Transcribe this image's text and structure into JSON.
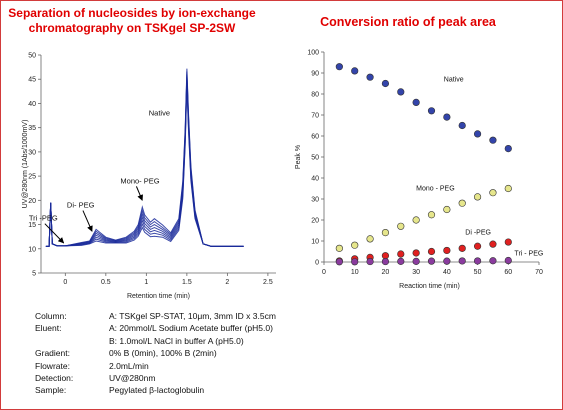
{
  "left_title": [
    "Separation of nucleosides by ion-exchange",
    "chromatography on TSKgel SP-2SW"
  ],
  "right_title": "Conversion ratio of peak area",
  "chart_data": [
    {
      "type": "line",
      "xlabel": "Retention time (min)",
      "ylabel": "UV@280nm (1Abs/1000mV)",
      "xlim": [
        -0.3,
        2.6
      ],
      "ylim": [
        5,
        50
      ],
      "x_ticks": [
        0,
        0.5,
        1,
        1.5,
        2,
        2.5
      ],
      "y_ticks": [
        5,
        10,
        15,
        20,
        25,
        30,
        35,
        40,
        45,
        50
      ],
      "x_tick_labels": [
        "0",
        "0.5",
        "1",
        "1.5",
        "2",
        "2.5"
      ],
      "y_tick_labels": [
        "5",
        "10",
        "15",
        "20",
        "25",
        "30",
        "35",
        "40",
        "45",
        "50"
      ],
      "grid": false,
      "line_color": "#1a2a9a",
      "annotations": [
        {
          "text": "Native",
          "x": 1.03,
          "y": 37.5
        },
        {
          "text": "Mono- PEG",
          "x": 0.68,
          "y": 23.5,
          "arrow_to": [
            0.95,
            20.0
          ]
        },
        {
          "text": "Di- PEG",
          "x": 0.02,
          "y": 18.5,
          "arrow_to": [
            0.33,
            13.6
          ]
        },
        {
          "text": "Tri -PEG",
          "x": -0.45,
          "y": 15.8,
          "arrow_to": [
            -0.02,
            11.2
          ]
        }
      ],
      "series": [
        {
          "x": [
            -0.24,
            -0.2,
            -0.18,
            -0.16,
            -0.1,
            0,
            0.2,
            0.3,
            0.38,
            0.5,
            0.62,
            0.75,
            0.85,
            0.9,
            0.95,
            0.98,
            1.05,
            1.1,
            1.2,
            1.3,
            1.4,
            1.45,
            1.48,
            1.5,
            1.52,
            1.55,
            1.6,
            1.7,
            1.8,
            2.0,
            2.2
          ],
          "y": [
            10.5,
            10.5,
            19.5,
            11,
            10.6,
            10.6,
            11.3,
            11.6,
            14,
            12.4,
            11.8,
            12.4,
            13.6,
            15,
            18.6,
            17,
            15.5,
            16.2,
            14.9,
            13.3,
            16.2,
            24,
            35,
            47.2,
            38,
            27,
            18,
            11,
            10.5,
            10.5,
            10.5
          ]
        },
        {
          "x": [
            -0.24,
            -0.2,
            -0.18,
            -0.16,
            -0.1,
            0,
            0.2,
            0.3,
            0.38,
            0.5,
            0.62,
            0.75,
            0.85,
            0.9,
            0.95,
            0.98,
            1.05,
            1.1,
            1.2,
            1.3,
            1.4,
            1.45,
            1.48,
            1.5,
            1.52,
            1.55,
            1.6,
            1.7,
            1.8,
            2.0,
            2.2
          ],
          "y": [
            10.5,
            10.5,
            19.5,
            11,
            10.6,
            10.6,
            11.2,
            11.5,
            13.6,
            12.2,
            11.7,
            12.2,
            13.3,
            14.6,
            17.9,
            16.4,
            15,
            15.6,
            14.4,
            13,
            15.8,
            23.4,
            34.4,
            46.6,
            37.4,
            26.5,
            17.7,
            11,
            10.5,
            10.5,
            10.5
          ]
        },
        {
          "x": [
            -0.24,
            -0.2,
            -0.18,
            -0.16,
            -0.1,
            0,
            0.2,
            0.3,
            0.38,
            0.5,
            0.62,
            0.75,
            0.85,
            0.9,
            0.95,
            0.98,
            1.05,
            1.1,
            1.2,
            1.3,
            1.4,
            1.45,
            1.48,
            1.5,
            1.52,
            1.55,
            1.6,
            1.7,
            1.8,
            2.0,
            2.2
          ],
          "y": [
            10.5,
            10.5,
            19.5,
            11,
            10.6,
            10.6,
            11.1,
            11.4,
            13.2,
            12,
            11.6,
            12,
            13,
            14.2,
            17.2,
            15.8,
            14.5,
            15,
            14,
            12.7,
            15.4,
            22.8,
            33.8,
            46,
            36.8,
            26,
            17.4,
            11,
            10.5,
            10.5,
            10.5
          ]
        },
        {
          "x": [
            -0.24,
            -0.2,
            -0.18,
            -0.16,
            -0.1,
            0,
            0.2,
            0.3,
            0.38,
            0.5,
            0.62,
            0.75,
            0.85,
            0.9,
            0.95,
            0.98,
            1.05,
            1.1,
            1.2,
            1.3,
            1.4,
            1.45,
            1.48,
            1.5,
            1.52,
            1.55,
            1.6,
            1.7,
            1.8,
            2.0,
            2.2
          ],
          "y": [
            10.5,
            10.5,
            19.5,
            11,
            10.6,
            10.6,
            11,
            11.3,
            12.8,
            11.8,
            11.5,
            11.8,
            12.7,
            13.8,
            16.5,
            15.2,
            14,
            14.4,
            13.6,
            12.4,
            15,
            22.2,
            33.2,
            45.4,
            36.2,
            25.5,
            17.1,
            11,
            10.5,
            10.5,
            10.5
          ]
        },
        {
          "x": [
            -0.24,
            -0.2,
            -0.18,
            -0.16,
            -0.1,
            0,
            0.2,
            0.3,
            0.38,
            0.5,
            0.62,
            0.75,
            0.85,
            0.9,
            0.95,
            0.98,
            1.05,
            1.1,
            1.2,
            1.3,
            1.4,
            1.45,
            1.48,
            1.5,
            1.52,
            1.55,
            1.6,
            1.7,
            1.8,
            2.0,
            2.2
          ],
          "y": [
            10.5,
            10.5,
            19.5,
            11,
            10.6,
            10.6,
            10.9,
            11.2,
            12.4,
            11.6,
            11.4,
            11.6,
            12.4,
            13.4,
            15.8,
            14.6,
            13.5,
            13.8,
            13.2,
            12.1,
            14.6,
            21.6,
            32.6,
            44.8,
            35.6,
            25,
            16.8,
            11,
            10.5,
            10.5,
            10.5
          ]
        },
        {
          "x": [
            -0.24,
            -0.2,
            -0.18,
            -0.16,
            -0.1,
            0,
            0.2,
            0.3,
            0.38,
            0.5,
            0.62,
            0.75,
            0.85,
            0.9,
            0.95,
            0.98,
            1.05,
            1.1,
            1.2,
            1.3,
            1.4,
            1.45,
            1.48,
            1.5,
            1.52,
            1.55,
            1.6,
            1.7,
            1.8,
            2.0,
            2.2
          ],
          "y": [
            10.5,
            10.5,
            19.5,
            11,
            10.6,
            10.6,
            10.8,
            11.1,
            12,
            11.4,
            11.3,
            11.4,
            12.1,
            13,
            15.1,
            14,
            13,
            13.2,
            12.8,
            11.8,
            14.2,
            21,
            32,
            44.2,
            35,
            24.5,
            16.5,
            11,
            10.5,
            10.5,
            10.5
          ]
        },
        {
          "x": [
            -0.24,
            -0.2,
            -0.18,
            -0.16,
            -0.1,
            0,
            0.2,
            0.3,
            0.38,
            0.5,
            0.62,
            0.75,
            0.85,
            0.9,
            0.95,
            0.98,
            1.05,
            1.1,
            1.2,
            1.3,
            1.4,
            1.45,
            1.48,
            1.5,
            1.52,
            1.55,
            1.6,
            1.7,
            1.8,
            2.0,
            2.2
          ],
          "y": [
            10.5,
            10.5,
            19.5,
            11,
            10.6,
            10.6,
            10.7,
            11,
            11.6,
            11.2,
            11.2,
            11.2,
            11.8,
            12.6,
            14.4,
            13.4,
            12.5,
            12.6,
            12.4,
            11.5,
            13.8,
            20.4,
            31.4,
            43.6,
            34.4,
            24,
            16.2,
            11,
            10.5,
            10.5,
            10.5
          ]
        }
      ]
    },
    {
      "type": "scatter",
      "xlabel": "Reaction time (min)",
      "ylabel": "Peak %",
      "xlim": [
        0,
        70
      ],
      "ylim": [
        0,
        100
      ],
      "x_ticks": [
        0,
        10,
        20,
        30,
        40,
        50,
        60,
        70
      ],
      "y_ticks": [
        0,
        10,
        20,
        30,
        40,
        50,
        60,
        70,
        80,
        90,
        100
      ],
      "x_tick_labels": [
        "0",
        "10",
        "20",
        "30",
        "40",
        "50",
        "60",
        "70"
      ],
      "y_tick_labels": [
        "0",
        "10",
        "20",
        "30",
        "40",
        "50",
        "60",
        "70",
        "80",
        "90",
        "100"
      ],
      "grid": false,
      "legend": "none",
      "series": [
        {
          "name": "Native",
          "color": "#3344aa",
          "label_at": [
            39,
            86
          ],
          "x": [
            5,
            10,
            15,
            20,
            25,
            30,
            35,
            40,
            45,
            50,
            55,
            60
          ],
          "y": [
            93,
            91,
            88,
            85,
            81,
            76,
            72,
            69,
            65,
            61,
            58,
            54
          ]
        },
        {
          "name": "Mono - PEG",
          "color": "#e6e68c",
          "label_at": [
            30,
            34
          ],
          "x": [
            5,
            10,
            15,
            20,
            25,
            30,
            35,
            40,
            45,
            50,
            55,
            60
          ],
          "y": [
            6.5,
            8,
            11,
            14,
            17,
            20,
            22.5,
            25,
            28,
            31,
            33,
            35
          ]
        },
        {
          "name": "Di -PEG",
          "color": "#e02020",
          "label_at": [
            46,
            13
          ],
          "x": [
            5,
            10,
            15,
            20,
            25,
            30,
            35,
            40,
            45,
            50,
            55,
            60
          ],
          "y": [
            0.5,
            1.5,
            2.2,
            3,
            3.8,
            4.3,
            5,
            5.5,
            6.5,
            7.5,
            8.5,
            9.5
          ]
        },
        {
          "name": "Tri - PEG",
          "color": "#8a3b9e",
          "label_at": [
            62,
            3
          ],
          "x": [
            5,
            10,
            15,
            20,
            25,
            30,
            35,
            40,
            45,
            50,
            55,
            60
          ],
          "y": [
            0.1,
            0.1,
            0.2,
            0.2,
            0.3,
            0.3,
            0.4,
            0.4,
            0.5,
            0.5,
            0.6,
            0.7
          ]
        }
      ]
    }
  ],
  "conditions": [
    {
      "label": "Column:",
      "value": "A: TSKgel SP-STAT, 10μm, 3mm ID x 3.5cm"
    },
    {
      "label": "Eluent:",
      "value": "A: 20mmol/L Sodium Acetate buffer (pH5.0)"
    },
    {
      "label": "",
      "value": "B: 1.0mol/L NaCl in buffer A (pH5.0)"
    },
    {
      "label": "Gradient:",
      "value": "0% B (0min), 100% B (2min)"
    },
    {
      "label": "Flowrate:",
      "value": "2.0mL/min"
    },
    {
      "label": "Detection:",
      "value": "UV@280nm"
    },
    {
      "label": "Sample:",
      "value": "Pegylated β-lactoglobulin"
    }
  ]
}
